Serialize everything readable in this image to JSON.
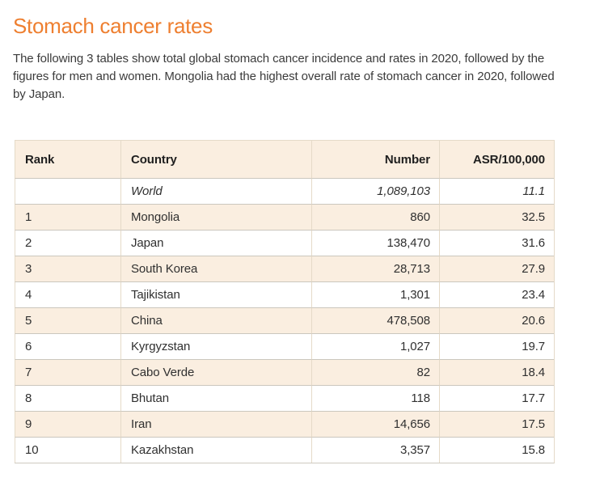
{
  "page": {
    "title": "Stomach cancer rates",
    "intro": "The following 3 tables show total global stomach cancer incidence and rates in 2020, followed by the figures for men and women. Mongolia had the highest overall rate of stomach cancer in 2020, followed by Japan."
  },
  "colors": {
    "heading_orange": "#ee7f30",
    "stripe_peach": "#faeee0",
    "border_tan": "#e5dac8",
    "border_gray": "#cbc7be",
    "text": "#303030"
  },
  "table": {
    "columns": {
      "rank": "Rank",
      "country": "Country",
      "number": "Number",
      "asr": "ASR/100,000"
    },
    "rows": [
      {
        "rank": "",
        "country": "World",
        "number": "1,089,103",
        "asr": "11.1"
      },
      {
        "rank": "1",
        "country": "Mongolia",
        "number": "860",
        "asr": "32.5"
      },
      {
        "rank": "2",
        "country": "Japan",
        "number": "138,470",
        "asr": "31.6"
      },
      {
        "rank": "3",
        "country": "South Korea",
        "number": "28,713",
        "asr": "27.9"
      },
      {
        "rank": "4",
        "country": "Tajikistan",
        "number": "1,301",
        "asr": "23.4"
      },
      {
        "rank": "5",
        "country": "China",
        "number": "478,508",
        "asr": "20.6"
      },
      {
        "rank": "6",
        "country": "Kyrgyzstan",
        "number": "1,027",
        "asr": "19.7"
      },
      {
        "rank": "7",
        "country": "Cabo Verde",
        "number": "82",
        "asr": "18.4"
      },
      {
        "rank": "8",
        "country": "Bhutan",
        "number": "118",
        "asr": "17.7"
      },
      {
        "rank": "9",
        "country": "Iran",
        "number": "14,656",
        "asr": "17.5"
      },
      {
        "rank": "10",
        "country": "Kazakhstan",
        "number": "3,357",
        "asr": "15.8"
      }
    ]
  }
}
